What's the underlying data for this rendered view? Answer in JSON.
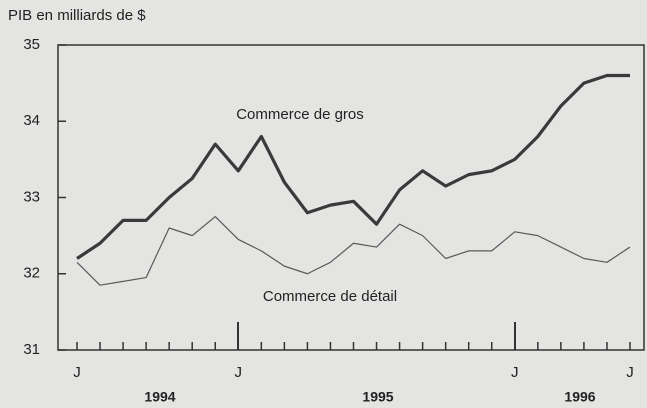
{
  "chart_data": {
    "type": "line",
    "y_axis_title": "PIB en milliards de $",
    "categories": [
      "J",
      null,
      null,
      null,
      null,
      null,
      null,
      "J",
      null,
      null,
      null,
      null,
      null,
      null,
      null,
      null,
      null,
      null,
      null,
      "J",
      null,
      null,
      null,
      null,
      "J"
    ],
    "year_labels": [
      "1994",
      "1995",
      "1996"
    ],
    "series": [
      {
        "name": "Commerce de gros",
        "color": "#3a3a3a",
        "width": 3.2,
        "values": [
          32.2,
          32.4,
          32.7,
          32.7,
          33.0,
          33.25,
          33.7,
          33.35,
          33.8,
          33.2,
          32.8,
          32.9,
          32.95,
          32.65,
          33.1,
          33.35,
          33.15,
          33.3,
          33.35,
          33.5,
          33.8,
          34.2,
          34.5,
          34.6,
          34.6
        ]
      },
      {
        "name": "Commerce de détail",
        "color": "#5a5a5a",
        "width": 1.2,
        "values": [
          32.15,
          31.85,
          31.9,
          31.95,
          32.6,
          32.5,
          32.75,
          32.45,
          32.3,
          32.1,
          32.0,
          32.15,
          32.4,
          32.35,
          32.65,
          32.5,
          32.2,
          32.3,
          32.3,
          32.55,
          32.5,
          32.35,
          32.2,
          32.15,
          32.35
        ]
      }
    ],
    "ylim": [
      31,
      35
    ],
    "yticks": [
      31,
      32,
      33,
      34,
      35
    ]
  }
}
